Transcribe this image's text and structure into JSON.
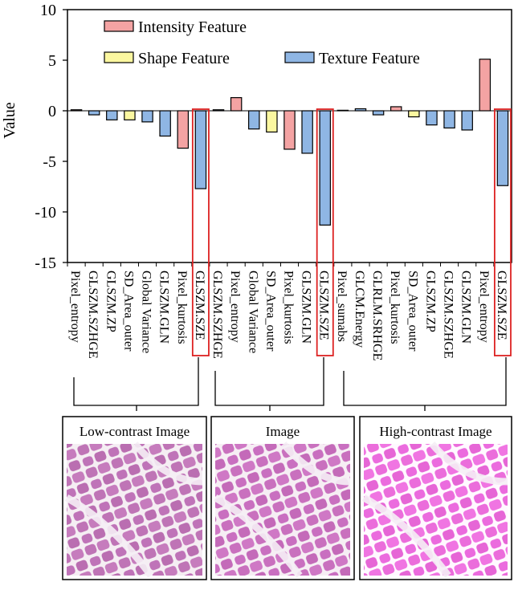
{
  "chart_data": {
    "type": "bar",
    "y_label": "Value",
    "categories": [
      "Pixel_entropy",
      "GLSZM.SZHGE",
      "GLSZM.ZP",
      "SD_Area_outer",
      "Global Variance",
      "GLSZM.GLN",
      "Pixel_kurtosis",
      "GLSZM.SZE",
      "GLSZM.SZHGE",
      "Pixel_entropy",
      "Global Variance",
      "SD_Area_outer",
      "Pixel_kurtosis",
      "GLSZM.GLN",
      "GLSZM.SZE",
      "Pixel_sumabs",
      "GLCM.Energy",
      "GLRLM.SRHGE",
      "Pixel_kurtosis",
      "SD_Area_outer",
      "GLSZM.ZP",
      "GLSZM.SZHGE",
      "GLSZM.GLN",
      "Pixel_entropy",
      "GLSZM.SZE"
    ],
    "series": [
      {
        "name": "Intensity Feature",
        "color": "#f4a3a3",
        "values": [
          0.1,
          null,
          null,
          null,
          null,
          null,
          -3.7,
          null,
          null,
          1.3,
          null,
          null,
          -3.8,
          null,
          null,
          0.05,
          null,
          null,
          0.4,
          null,
          null,
          null,
          null,
          5.1,
          null
        ]
      },
      {
        "name": "Shape Feature",
        "color": "#fbf7a0",
        "values": [
          null,
          null,
          null,
          -0.9,
          null,
          null,
          null,
          null,
          null,
          null,
          null,
          -2.1,
          null,
          null,
          null,
          null,
          null,
          null,
          null,
          -0.6,
          null,
          null,
          null,
          null,
          null
        ]
      },
      {
        "name": "Texture Feature",
        "color": "#8fb6e4",
        "values": [
          null,
          -0.4,
          -0.9,
          null,
          -1.1,
          -2.5,
          null,
          -7.7,
          0.1,
          null,
          -1.8,
          null,
          null,
          -4.2,
          -11.3,
          null,
          0.2,
          -0.4,
          null,
          null,
          -1.4,
          -1.7,
          -1.9,
          null,
          -7.4
        ]
      }
    ],
    "ylim": [
      -15,
      10
    ],
    "yticks": [
      -15,
      -10,
      -5,
      0,
      5,
      10
    ]
  },
  "panels": [
    {
      "title": "Low-contrast Image"
    },
    {
      "title": "Image"
    },
    {
      "title": "High-contrast Image"
    }
  ]
}
